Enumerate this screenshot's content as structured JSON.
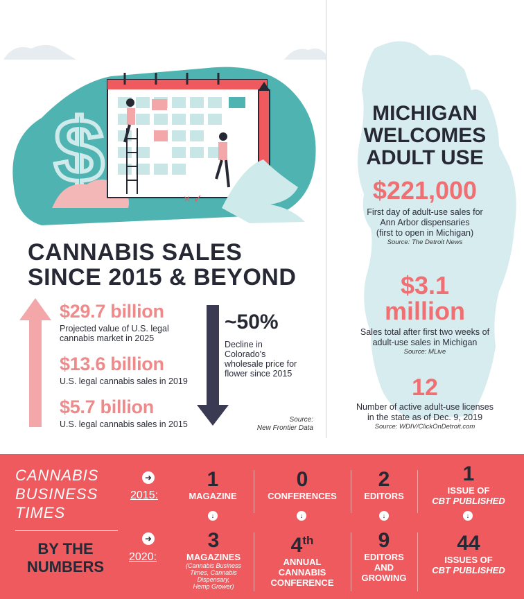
{
  "left": {
    "title_line1": "CANNABIS SALES",
    "title_line2": "SINCE 2015 & BEYOND",
    "stats": [
      {
        "value": "$29.7 billion",
        "desc_line1": "Projected value of U.S. legal",
        "desc_line2": "cannabis market in 2025"
      },
      {
        "value": "$13.6 billion",
        "desc_line1": "U.S. legal cannabis sales in 2019",
        "desc_line2": ""
      },
      {
        "value": "$5.7 billion",
        "desc_line1": "U.S. legal cannabis sales in 2015",
        "desc_line2": ""
      }
    ],
    "decline": {
      "value": "~50%",
      "desc": [
        "Decline in",
        "Colorado's",
        "wholesale price for",
        "flower since 2015"
      ]
    },
    "source_label": "Source:",
    "source_name": "New Frontier Data"
  },
  "right": {
    "title_line1": "MICHIGAN",
    "title_line2": "WELCOMES",
    "title_line3": "ADULT USE",
    "stats": [
      {
        "value": "$221,000",
        "desc": [
          "First day of adult-use sales for",
          "Ann Arbor dispensaries",
          "(first to open in Michigan)"
        ],
        "source": "Source: The Detroit News"
      },
      {
        "value_line1": "$3.1",
        "value_line2": "million",
        "desc": [
          "Sales total after first two weeks of",
          "adult-use sales in Michigan"
        ],
        "source": "Source: MLive"
      },
      {
        "value": "12",
        "desc": [
          "Number of active adult-use licenses",
          "in the state as of Dec. 9, 2019"
        ],
        "source": "Source: WDIV/ClickOnDetroit.com"
      }
    ]
  },
  "band": {
    "brand_line1": "CANNABIS",
    "brand_line2": "BUSINESS",
    "brand_line3": "TIMES",
    "by_line1": "BY THE",
    "by_line2": "NUMBERS",
    "year1": "2015:",
    "year2": "2020:",
    "row1": [
      {
        "num": "1",
        "label_line1": "MAGAZINE",
        "label_line2": ""
      },
      {
        "num": "0",
        "label_line1": "CONFERENCES",
        "label_line2": ""
      },
      {
        "num": "2",
        "label_line1": "EDITORS",
        "label_line2": ""
      },
      {
        "num": "1",
        "label_line1": "ISSUE OF",
        "label_line2": "CBT PUBLISHED"
      }
    ],
    "row2": [
      {
        "num": "3",
        "label_line1": "MAGAZINES",
        "sub": [
          "(Cannabis Business",
          "Times, Cannabis",
          "Dispensary,",
          "Hemp Grower)"
        ]
      },
      {
        "num": "4",
        "sup": "th",
        "label_line1": "ANNUAL",
        "label_line2": "CANNABIS",
        "label_line3": "CONFERENCE"
      },
      {
        "num": "9",
        "label_line1": "EDITORS",
        "label_line2": "AND",
        "label_line3": "GROWING"
      },
      {
        "num": "44",
        "label_line1": "ISSUES OF",
        "label_line2": "CBT PUBLISHED"
      }
    ]
  },
  "colors": {
    "accent": "#ee5a5e",
    "teal": "#4fb3b1",
    "navy": "#262834",
    "pink": "#ef8a8b"
  }
}
